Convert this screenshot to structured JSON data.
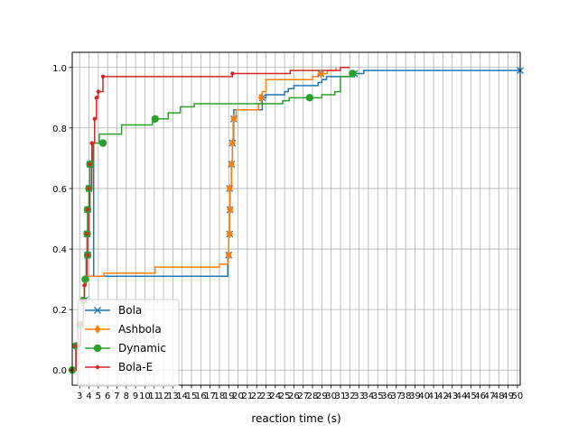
{
  "chart_data": {
    "type": "line",
    "step": true,
    "title": "",
    "xlabel": "reaction time (s)",
    "ylabel": "",
    "xlim": [
      2.2,
      50.3
    ],
    "ylim": [
      -0.05,
      1.05
    ],
    "grid": true,
    "legend_position": "lower-left",
    "x_ticks": [
      3,
      4,
      5,
      6,
      7,
      8,
      9,
      10,
      11,
      12,
      13,
      14,
      15,
      16,
      17,
      18,
      19,
      20,
      21,
      22,
      23,
      24,
      25,
      26,
      27,
      28,
      29,
      30,
      31,
      32,
      33,
      34,
      35,
      36,
      37,
      38,
      39,
      40,
      41,
      42,
      43,
      44,
      45,
      46,
      47,
      48,
      49,
      50
    ],
    "y_ticks": [
      0.0,
      0.2,
      0.4,
      0.6,
      0.8,
      1.0
    ],
    "y_tick_labels": [
      "0.0",
      "0.2",
      "0.4",
      "0.6",
      "0.8",
      "1.0"
    ],
    "series": [
      {
        "name": "Bola",
        "color": "#1f77b4",
        "marker": "x",
        "x": [
          2.2,
          2.6,
          3.1,
          3.4,
          3.5,
          3.7,
          3.8,
          3.85,
          4.0,
          4.1,
          4.3,
          4.5,
          18.9,
          19.0,
          19.1,
          19.15,
          19.3,
          19.4,
          19.5,
          19.55,
          20.0,
          21.0,
          22.0,
          22.6,
          23.0,
          25.0,
          25.4,
          26.0,
          28.6,
          29.0,
          29.5,
          32.0,
          32.5,
          33.5,
          50.3
        ],
        "y": [
          0.0,
          0.08,
          0.15,
          0.23,
          0.3,
          0.38,
          0.45,
          0.53,
          0.6,
          0.68,
          0.75,
          0.31,
          0.38,
          0.45,
          0.53,
          0.6,
          0.68,
          0.75,
          0.83,
          0.86,
          0.86,
          0.86,
          0.86,
          0.9,
          0.91,
          0.92,
          0.93,
          0.94,
          0.95,
          0.96,
          0.97,
          0.97,
          0.98,
          0.99,
          0.99
        ]
      },
      {
        "name": "Ashbola",
        "color": "#ff7f0e",
        "marker": "d",
        "x": [
          2.2,
          2.6,
          3.1,
          3.4,
          3.5,
          3.7,
          3.8,
          3.85,
          4.0,
          4.1,
          4.3,
          4.5,
          5.6,
          11.1,
          18.0,
          18.9,
          19.0,
          19.1,
          19.15,
          19.3,
          19.4,
          19.55,
          19.8,
          22.2,
          22.5,
          22.6,
          23.0,
          28.0,
          28.6,
          29.0,
          29.6,
          30.5
        ],
        "y": [
          0.0,
          0.08,
          0.15,
          0.23,
          0.3,
          0.31,
          0.31,
          0.31,
          0.31,
          0.31,
          0.31,
          0.31,
          0.32,
          0.34,
          0.35,
          0.38,
          0.45,
          0.53,
          0.6,
          0.68,
          0.75,
          0.83,
          0.86,
          0.88,
          0.9,
          0.92,
          0.96,
          0.97,
          0.98,
          0.98,
          0.99,
          1.0
        ]
      },
      {
        "name": "Dynamic",
        "color": "#2ca02c",
        "marker": "o",
        "x": [
          2.2,
          2.6,
          3.1,
          3.4,
          3.5,
          3.7,
          3.8,
          3.85,
          4.0,
          4.1,
          4.5,
          5.1,
          5.5,
          7.5,
          10.8,
          11.1,
          12.5,
          13.8,
          15.3,
          22.6,
          23.0,
          24.8,
          25.5,
          27.0,
          28.0,
          29.0,
          30.4,
          31.0,
          32.3,
          33.0
        ],
        "y": [
          0.0,
          0.08,
          0.15,
          0.23,
          0.3,
          0.38,
          0.45,
          0.53,
          0.6,
          0.68,
          0.75,
          0.78,
          0.78,
          0.81,
          0.82,
          0.83,
          0.85,
          0.87,
          0.88,
          0.88,
          0.88,
          0.89,
          0.9,
          0.9,
          0.9,
          0.91,
          0.92,
          0.97,
          0.98,
          0.98
        ]
      },
      {
        "name": "Bola-E",
        "color": "#d62728",
        "marker": ".",
        "x": [
          2.2,
          2.6,
          3.1,
          3.4,
          3.5,
          3.7,
          3.8,
          3.85,
          4.0,
          4.1,
          4.3,
          4.4,
          4.6,
          4.8,
          5.0,
          5.5,
          6.0,
          19.0,
          19.4,
          23.0,
          25.6,
          28.0,
          29.0,
          30.0,
          31.0,
          32.0
        ],
        "y": [
          0.0,
          0.08,
          0.15,
          0.23,
          0.28,
          0.31,
          0.38,
          0.45,
          0.53,
          0.6,
          0.68,
          0.75,
          0.83,
          0.9,
          0.92,
          0.97,
          0.97,
          0.97,
          0.98,
          0.98,
          0.99,
          0.99,
          0.99,
          0.99,
          1.0,
          1.0
        ]
      }
    ],
    "marker_points": {
      "Bola": [
        [
          3.5,
          0.23
        ],
        [
          3.85,
          0.38
        ],
        [
          3.8,
          0.45
        ],
        [
          3.85,
          0.53
        ],
        [
          4.0,
          0.6
        ],
        [
          4.1,
          0.68
        ],
        [
          19.0,
          0.38
        ],
        [
          19.1,
          0.45
        ],
        [
          19.15,
          0.53
        ],
        [
          19.1,
          0.6
        ],
        [
          19.3,
          0.68
        ],
        [
          19.4,
          0.75
        ],
        [
          19.55,
          0.83
        ],
        [
          22.6,
          0.9
        ],
        [
          28.9,
          0.98
        ],
        [
          32.5,
          0.98
        ],
        [
          50.3,
          0.99
        ]
      ],
      "Ashbola": [
        [
          3.7,
          0.3
        ],
        [
          19.0,
          0.38
        ],
        [
          19.1,
          0.45
        ],
        [
          19.15,
          0.53
        ],
        [
          19.1,
          0.6
        ],
        [
          19.3,
          0.68
        ],
        [
          19.4,
          0.75
        ],
        [
          19.55,
          0.83
        ],
        [
          22.5,
          0.9
        ],
        [
          28.9,
          0.98
        ]
      ],
      "Dynamic": [
        [
          2.2,
          0.0
        ],
        [
          2.6,
          0.08
        ],
        [
          3.1,
          0.15
        ],
        [
          3.4,
          0.23
        ],
        [
          3.6,
          0.3
        ],
        [
          3.85,
          0.38
        ],
        [
          3.8,
          0.45
        ],
        [
          3.85,
          0.53
        ],
        [
          4.0,
          0.6
        ],
        [
          4.1,
          0.68
        ],
        [
          5.5,
          0.75
        ],
        [
          11.1,
          0.83
        ],
        [
          27.7,
          0.9
        ],
        [
          32.3,
          0.98
        ]
      ],
      "Bola-E": [
        [
          2.2,
          0.0
        ],
        [
          2.6,
          0.08
        ],
        [
          3.1,
          0.15
        ],
        [
          3.4,
          0.23
        ],
        [
          3.5,
          0.28
        ],
        [
          3.85,
          0.38
        ],
        [
          3.8,
          0.45
        ],
        [
          3.85,
          0.53
        ],
        [
          4.0,
          0.6
        ],
        [
          4.1,
          0.68
        ],
        [
          4.3,
          0.75
        ],
        [
          4.6,
          0.83
        ],
        [
          4.8,
          0.9
        ],
        [
          5.0,
          0.92
        ],
        [
          5.5,
          0.97
        ],
        [
          19.4,
          0.98
        ]
      ]
    }
  }
}
